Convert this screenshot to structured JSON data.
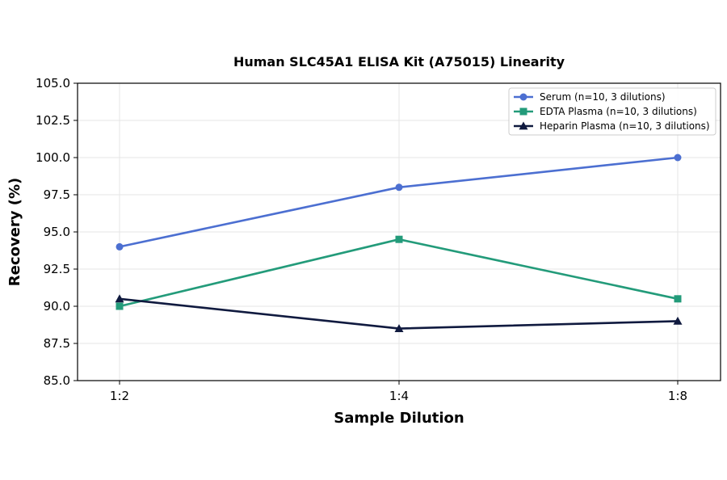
{
  "chart_data": {
    "type": "line",
    "title": "Human SLC45A1 ELISA Kit (A75015) Linearity",
    "xlabel": "Sample Dilution",
    "ylabel": "Recovery (%)",
    "categories": [
      "1:2",
      "1:4",
      "1:8"
    ],
    "ylim": [
      85.0,
      105.0
    ],
    "yticks": [
      "85.0",
      "87.5",
      "90.0",
      "92.5",
      "95.0",
      "97.5",
      "100.0",
      "102.5",
      "105.0"
    ],
    "grid": true,
    "legend_position": "top-right",
    "series": [
      {
        "name": "Serum (n=10, 3 dilutions)",
        "values": [
          94.0,
          98.0,
          100.0
        ],
        "color": "#4c6fd1",
        "marker": "circle"
      },
      {
        "name": "EDTA Plasma (n=10, 3 dilutions)",
        "values": [
          90.0,
          94.5,
          90.5
        ],
        "color": "#239b7a",
        "marker": "square"
      },
      {
        "name": "Heparin Plasma (n=10, 3 dilutions)",
        "values": [
          90.5,
          88.5,
          89.0
        ],
        "color": "#101a3f",
        "marker": "triangle"
      }
    ]
  }
}
